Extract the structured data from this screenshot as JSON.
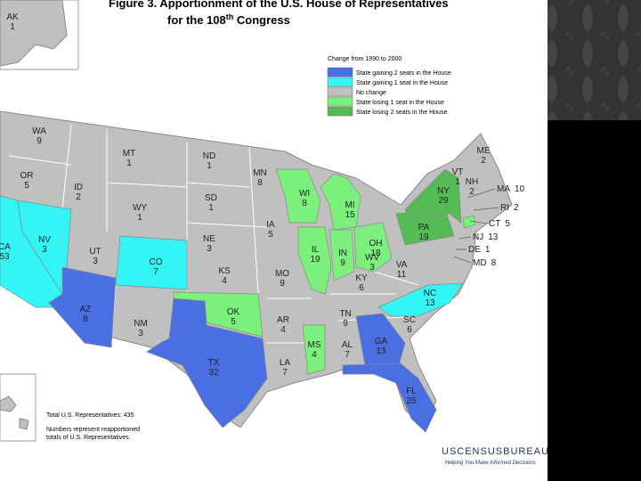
{
  "title": {
    "line1": "Figure 3.  Apportionment of the U.S. House of Representatives",
    "line2": "for the 108",
    "line2_sup": "th",
    "line2_end": " Congress"
  },
  "legend": {
    "heading": "Change from 1990 to 2000",
    "items": [
      {
        "label": "State gaining 2 seats in the House",
        "color": "#4a6fe3"
      },
      {
        "label": "State gaining 1 seat in the House",
        "color": "#33f5f5"
      },
      {
        "label": "No change",
        "color": "#c0c0c0"
      },
      {
        "label": "State losing 1 seat in the House",
        "color": "#7cf07c"
      },
      {
        "label": "State losing 2 seats in the House",
        "color": "#55bb55"
      }
    ]
  },
  "states": [
    {
      "abbr": "AK",
      "seats": "1",
      "color": "#c0c0c0"
    },
    {
      "abbr": "WA",
      "seats": "9",
      "color": "#c0c0c0"
    },
    {
      "abbr": "OR",
      "seats": "5",
      "color": "#c0c0c0"
    },
    {
      "abbr": "CA",
      "seats": "53",
      "color": "#33f5f5"
    },
    {
      "abbr": "NV",
      "seats": "3",
      "color": "#33f5f5"
    },
    {
      "abbr": "ID",
      "seats": "2",
      "color": "#c0c0c0"
    },
    {
      "abbr": "MT",
      "seats": "1",
      "color": "#c0c0c0"
    },
    {
      "abbr": "WY",
      "seats": "1",
      "color": "#c0c0c0"
    },
    {
      "abbr": "UT",
      "seats": "3",
      "color": "#c0c0c0"
    },
    {
      "abbr": "CO",
      "seats": "7",
      "color": "#33f5f5"
    },
    {
      "abbr": "AZ",
      "seats": "8",
      "color": "#4a6fe3"
    },
    {
      "abbr": "NM",
      "seats": "3",
      "color": "#c0c0c0"
    },
    {
      "abbr": "ND",
      "seats": "1",
      "color": "#c0c0c0"
    },
    {
      "abbr": "SD",
      "seats": "1",
      "color": "#c0c0c0"
    },
    {
      "abbr": "NE",
      "seats": "3",
      "color": "#c0c0c0"
    },
    {
      "abbr": "KS",
      "seats": "4",
      "color": "#c0c0c0"
    },
    {
      "abbr": "OK",
      "seats": "5",
      "color": "#7cf07c"
    },
    {
      "abbr": "TX",
      "seats": "32",
      "color": "#4a6fe3"
    },
    {
      "abbr": "MN",
      "seats": "8",
      "color": "#c0c0c0"
    },
    {
      "abbr": "IA",
      "seats": "5",
      "color": "#c0c0c0"
    },
    {
      "abbr": "MO",
      "seats": "9",
      "color": "#c0c0c0"
    },
    {
      "abbr": "AR",
      "seats": "4",
      "color": "#c0c0c0"
    },
    {
      "abbr": "LA",
      "seats": "7",
      "color": "#c0c0c0"
    },
    {
      "abbr": "WI",
      "seats": "8",
      "color": "#7cf07c"
    },
    {
      "abbr": "IL",
      "seats": "19",
      "color": "#7cf07c"
    },
    {
      "abbr": "MI",
      "seats": "15",
      "color": "#7cf07c"
    },
    {
      "abbr": "IN",
      "seats": "9",
      "color": "#7cf07c"
    },
    {
      "abbr": "OH",
      "seats": "18",
      "color": "#7cf07c"
    },
    {
      "abbr": "KY",
      "seats": "6",
      "color": "#c0c0c0"
    },
    {
      "abbr": "TN",
      "seats": "9",
      "color": "#c0c0c0"
    },
    {
      "abbr": "MS",
      "seats": "4",
      "color": "#7cf07c"
    },
    {
      "abbr": "AL",
      "seats": "7",
      "color": "#c0c0c0"
    },
    {
      "abbr": "GA",
      "seats": "13",
      "color": "#4a6fe3"
    },
    {
      "abbr": "FL",
      "seats": "25",
      "color": "#4a6fe3"
    },
    {
      "abbr": "SC",
      "seats": "6",
      "color": "#c0c0c0"
    },
    {
      "abbr": "NC",
      "seats": "13",
      "color": "#33f5f5"
    },
    {
      "abbr": "WV",
      "seats": "3",
      "color": "#c0c0c0"
    },
    {
      "abbr": "VA",
      "seats": "11",
      "color": "#c0c0c0"
    },
    {
      "abbr": "PA",
      "seats": "19",
      "color": "#55bb55"
    },
    {
      "abbr": "NY",
      "seats": "29",
      "color": "#55bb55"
    },
    {
      "abbr": "VT",
      "seats": "1",
      "color": "#c0c0c0"
    },
    {
      "abbr": "NH",
      "seats": "2",
      "color": "#c0c0c0"
    },
    {
      "abbr": "ME",
      "seats": "2",
      "color": "#c0c0c0"
    },
    {
      "abbr": "MA",
      "seats": "10",
      "color": "#c0c0c0"
    },
    {
      "abbr": "RI",
      "seats": "2",
      "color": "#c0c0c0"
    },
    {
      "abbr": "CT",
      "seats": "5",
      "color": "#7cf07c"
    },
    {
      "abbr": "NJ",
      "seats": "13",
      "color": "#c0c0c0"
    },
    {
      "abbr": "DE",
      "seats": "1",
      "color": "#c0c0c0"
    },
    {
      "abbr": "MD",
      "seats": "8",
      "color": "#c0c0c0"
    }
  ],
  "notes": {
    "total": "Total U.S. Representatives: 435",
    "line1": "Numbers represent reapportioned",
    "line2": "totals of U.S. Representatives."
  },
  "logo": {
    "name": "USCENSUSBUREAU",
    "tagline": "Helping You Make Informed Decisions"
  }
}
